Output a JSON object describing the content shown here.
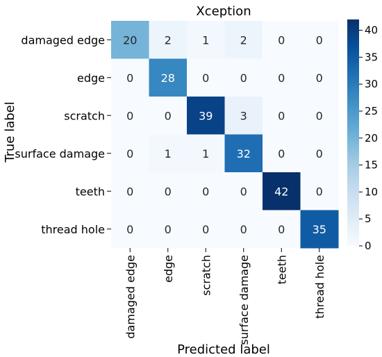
{
  "chart_data": {
    "type": "heatmap",
    "title": "Xception",
    "xlabel": "Predicted label",
    "ylabel": "True label",
    "x_categories": [
      "damaged edge",
      "edge",
      "scratch",
      "surface damage",
      "teeth",
      "thread hole"
    ],
    "y_categories": [
      "damaged edge",
      "edge",
      "scratch",
      "surface damage",
      "teeth",
      "thread hole"
    ],
    "values": [
      [
        20,
        2,
        1,
        2,
        0,
        0
      ],
      [
        0,
        28,
        0,
        0,
        0,
        0
      ],
      [
        0,
        0,
        39,
        3,
        0,
        0
      ],
      [
        0,
        1,
        1,
        32,
        0,
        0
      ],
      [
        0,
        0,
        0,
        0,
        42,
        0
      ],
      [
        0,
        0,
        0,
        0,
        0,
        35
      ]
    ],
    "colorbar": {
      "range": [
        0,
        42
      ],
      "ticks": [
        0,
        5,
        10,
        15,
        20,
        25,
        30,
        35,
        40
      ],
      "colormap": "Blues"
    },
    "grid": false
  }
}
